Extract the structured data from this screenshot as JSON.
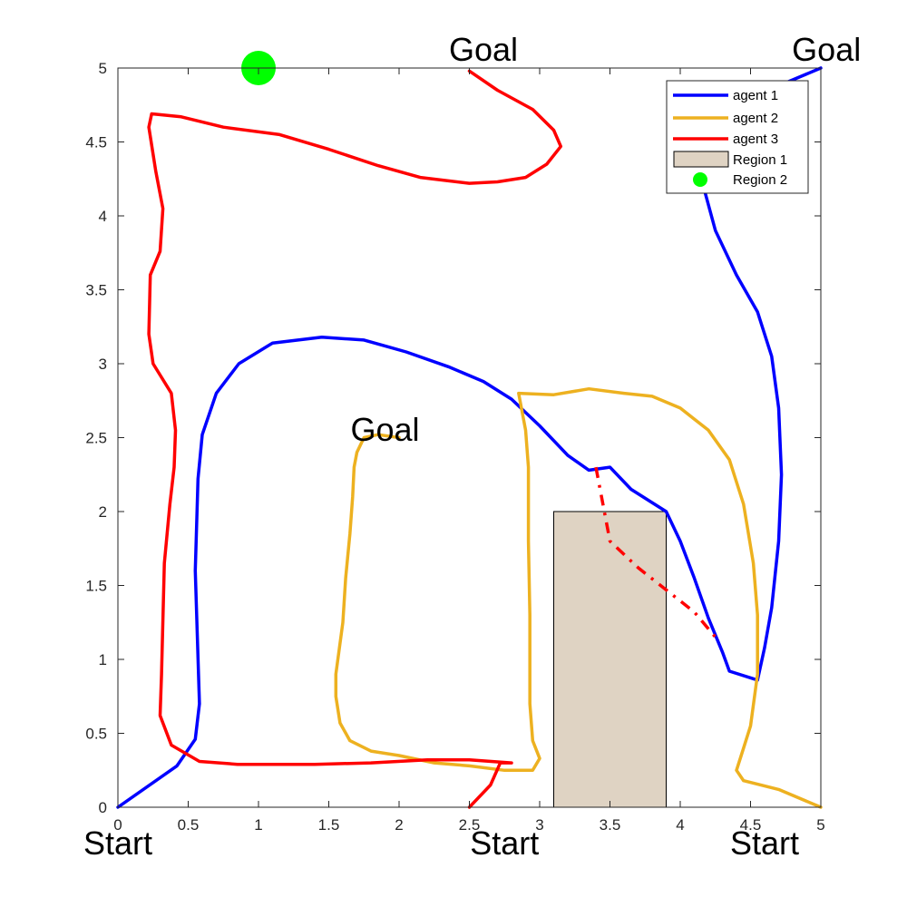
{
  "chart_data": {
    "type": "line",
    "title": "",
    "xlabel": "",
    "ylabel": "",
    "xlim": [
      0,
      5
    ],
    "ylim": [
      0,
      5
    ],
    "xticks": [
      "0",
      "0.5",
      "1",
      "1.5",
      "2",
      "2.5",
      "3",
      "3.5",
      "4",
      "4.5",
      "5"
    ],
    "yticks": [
      "0",
      "0.5",
      "1",
      "1.5",
      "2",
      "2.5",
      "3",
      "3.5",
      "4",
      "4.5",
      "5"
    ],
    "grid": false,
    "legend_position": "top-right",
    "series": [
      {
        "name": "agent 1",
        "color": "#0000ff",
        "style": "solid",
        "points": [
          [
            0,
            0
          ],
          [
            0.42,
            0.28
          ],
          [
            0.55,
            0.46
          ],
          [
            0.58,
            0.7
          ],
          [
            0.55,
            1.6
          ],
          [
            0.57,
            2.22
          ],
          [
            0.6,
            2.52
          ],
          [
            0.7,
            2.8
          ],
          [
            0.86,
            3.0
          ],
          [
            1.1,
            3.14
          ],
          [
            1.45,
            3.18
          ],
          [
            1.75,
            3.16
          ],
          [
            2.05,
            3.08
          ],
          [
            2.35,
            2.98
          ],
          [
            2.6,
            2.88
          ],
          [
            2.8,
            2.76
          ],
          [
            3.0,
            2.58
          ],
          [
            3.2,
            2.38
          ],
          [
            3.35,
            2.28
          ],
          [
            3.5,
            2.3
          ],
          [
            3.65,
            2.15
          ],
          [
            3.9,
            2.0
          ],
          [
            4.0,
            1.8
          ],
          [
            4.1,
            1.55
          ],
          [
            4.2,
            1.28
          ],
          [
            4.3,
            1.05
          ],
          [
            4.35,
            0.92
          ],
          [
            4.55,
            0.86
          ],
          [
            4.6,
            1.08
          ],
          [
            4.65,
            1.35
          ],
          [
            4.7,
            1.8
          ],
          [
            4.72,
            2.25
          ],
          [
            4.7,
            2.7
          ],
          [
            4.65,
            3.05
          ],
          [
            4.55,
            3.35
          ],
          [
            4.4,
            3.6
          ],
          [
            4.25,
            3.9
          ],
          [
            4.15,
            4.25
          ],
          [
            4.1,
            4.5
          ],
          [
            4.25,
            4.7
          ],
          [
            4.5,
            4.85
          ],
          [
            4.75,
            4.9
          ],
          [
            5.0,
            5.0
          ]
        ]
      },
      {
        "name": "agent 2",
        "color": "#edb120",
        "style": "solid",
        "points": [
          [
            5.0,
            0
          ],
          [
            4.7,
            0.12
          ],
          [
            4.45,
            0.18
          ],
          [
            4.4,
            0.25
          ],
          [
            4.45,
            0.4
          ],
          [
            4.5,
            0.55
          ],
          [
            4.55,
            0.9
          ],
          [
            4.55,
            1.3
          ],
          [
            4.52,
            1.65
          ],
          [
            4.45,
            2.05
          ],
          [
            4.35,
            2.35
          ],
          [
            4.2,
            2.55
          ],
          [
            4.0,
            2.7
          ],
          [
            3.8,
            2.78
          ],
          [
            3.6,
            2.8
          ],
          [
            3.35,
            2.83
          ],
          [
            3.1,
            2.79
          ],
          [
            2.85,
            2.8
          ],
          [
            2.9,
            2.55
          ],
          [
            2.92,
            2.3
          ],
          [
            2.92,
            1.8
          ],
          [
            2.93,
            1.3
          ],
          [
            2.93,
            0.7
          ],
          [
            2.95,
            0.45
          ],
          [
            3.0,
            0.33
          ],
          [
            2.95,
            0.25
          ],
          [
            2.75,
            0.25
          ],
          [
            2.5,
            0.28
          ],
          [
            2.25,
            0.3
          ],
          [
            2.0,
            0.35
          ],
          [
            1.8,
            0.38
          ],
          [
            1.65,
            0.45
          ],
          [
            1.58,
            0.57
          ],
          [
            1.55,
            0.75
          ],
          [
            1.55,
            0.9
          ],
          [
            1.6,
            1.25
          ],
          [
            1.62,
            1.55
          ],
          [
            1.65,
            1.85
          ],
          [
            1.67,
            2.1
          ],
          [
            1.68,
            2.3
          ],
          [
            1.7,
            2.4
          ],
          [
            1.75,
            2.5
          ],
          [
            1.85,
            2.52
          ],
          [
            2.0,
            2.5
          ]
        ]
      },
      {
        "name": "agent 3",
        "color": "#ff0000",
        "style": "solid",
        "points": [
          [
            2.5,
            0
          ],
          [
            2.65,
            0.15
          ],
          [
            2.72,
            0.3
          ],
          [
            2.8,
            0.3
          ],
          [
            2.5,
            0.32
          ],
          [
            2.2,
            0.32
          ],
          [
            1.8,
            0.3
          ],
          [
            1.4,
            0.29
          ],
          [
            1.1,
            0.29
          ],
          [
            0.85,
            0.29
          ],
          [
            0.58,
            0.31
          ],
          [
            0.38,
            0.42
          ],
          [
            0.3,
            0.62
          ],
          [
            0.31,
            0.9
          ],
          [
            0.33,
            1.65
          ],
          [
            0.37,
            2.05
          ],
          [
            0.4,
            2.3
          ],
          [
            0.41,
            2.55
          ],
          [
            0.38,
            2.8
          ],
          [
            0.25,
            3.0
          ],
          [
            0.22,
            3.2
          ],
          [
            0.23,
            3.6
          ],
          [
            0.3,
            3.76
          ],
          [
            0.32,
            4.05
          ],
          [
            0.27,
            4.3
          ],
          [
            0.22,
            4.6
          ],
          [
            0.24,
            4.69
          ],
          [
            0.45,
            4.67
          ],
          [
            0.75,
            4.6
          ],
          [
            1.15,
            4.55
          ],
          [
            1.5,
            4.45
          ],
          [
            1.85,
            4.34
          ],
          [
            2.15,
            4.26
          ],
          [
            2.5,
            4.22
          ],
          [
            2.7,
            4.23
          ],
          [
            2.9,
            4.26
          ],
          [
            3.05,
            4.35
          ],
          [
            3.15,
            4.47
          ],
          [
            3.1,
            4.58
          ],
          [
            2.95,
            4.72
          ],
          [
            2.7,
            4.85
          ],
          [
            2.5,
            4.98
          ]
        ]
      },
      {
        "name": "",
        "color": "#ff0000",
        "style": "dashed",
        "points": [
          [
            3.4,
            2.3
          ],
          [
            3.5,
            1.8
          ],
          [
            3.7,
            1.62
          ],
          [
            3.9,
            1.47
          ],
          [
            4.1,
            1.32
          ],
          [
            4.25,
            1.15
          ]
        ]
      }
    ],
    "regions": [
      {
        "name": "Region 1",
        "type": "rect",
        "x": [
          3.1,
          3.9
        ],
        "y": [
          0,
          2
        ],
        "color": "#dfd3c3"
      },
      {
        "name": "Region 2",
        "type": "circle",
        "center": [
          1.0,
          5.0
        ],
        "color": "#00ff00"
      }
    ],
    "annotations": [
      {
        "text": "Start",
        "x": 0.0,
        "y": -0.32
      },
      {
        "text": "Start",
        "x": 2.75,
        "y": -0.32
      },
      {
        "text": "Start",
        "x": 4.6,
        "y": -0.32
      },
      {
        "text": "Goal",
        "x": 2.6,
        "y": 5.05
      },
      {
        "text": "Goal",
        "x": 5.04,
        "y": 5.05
      },
      {
        "text": "Goal",
        "x": 1.9,
        "y": 2.48
      }
    ],
    "legend": [
      "agent 1",
      "agent 2",
      "agent 3",
      "Region 1",
      "Region 2"
    ]
  }
}
